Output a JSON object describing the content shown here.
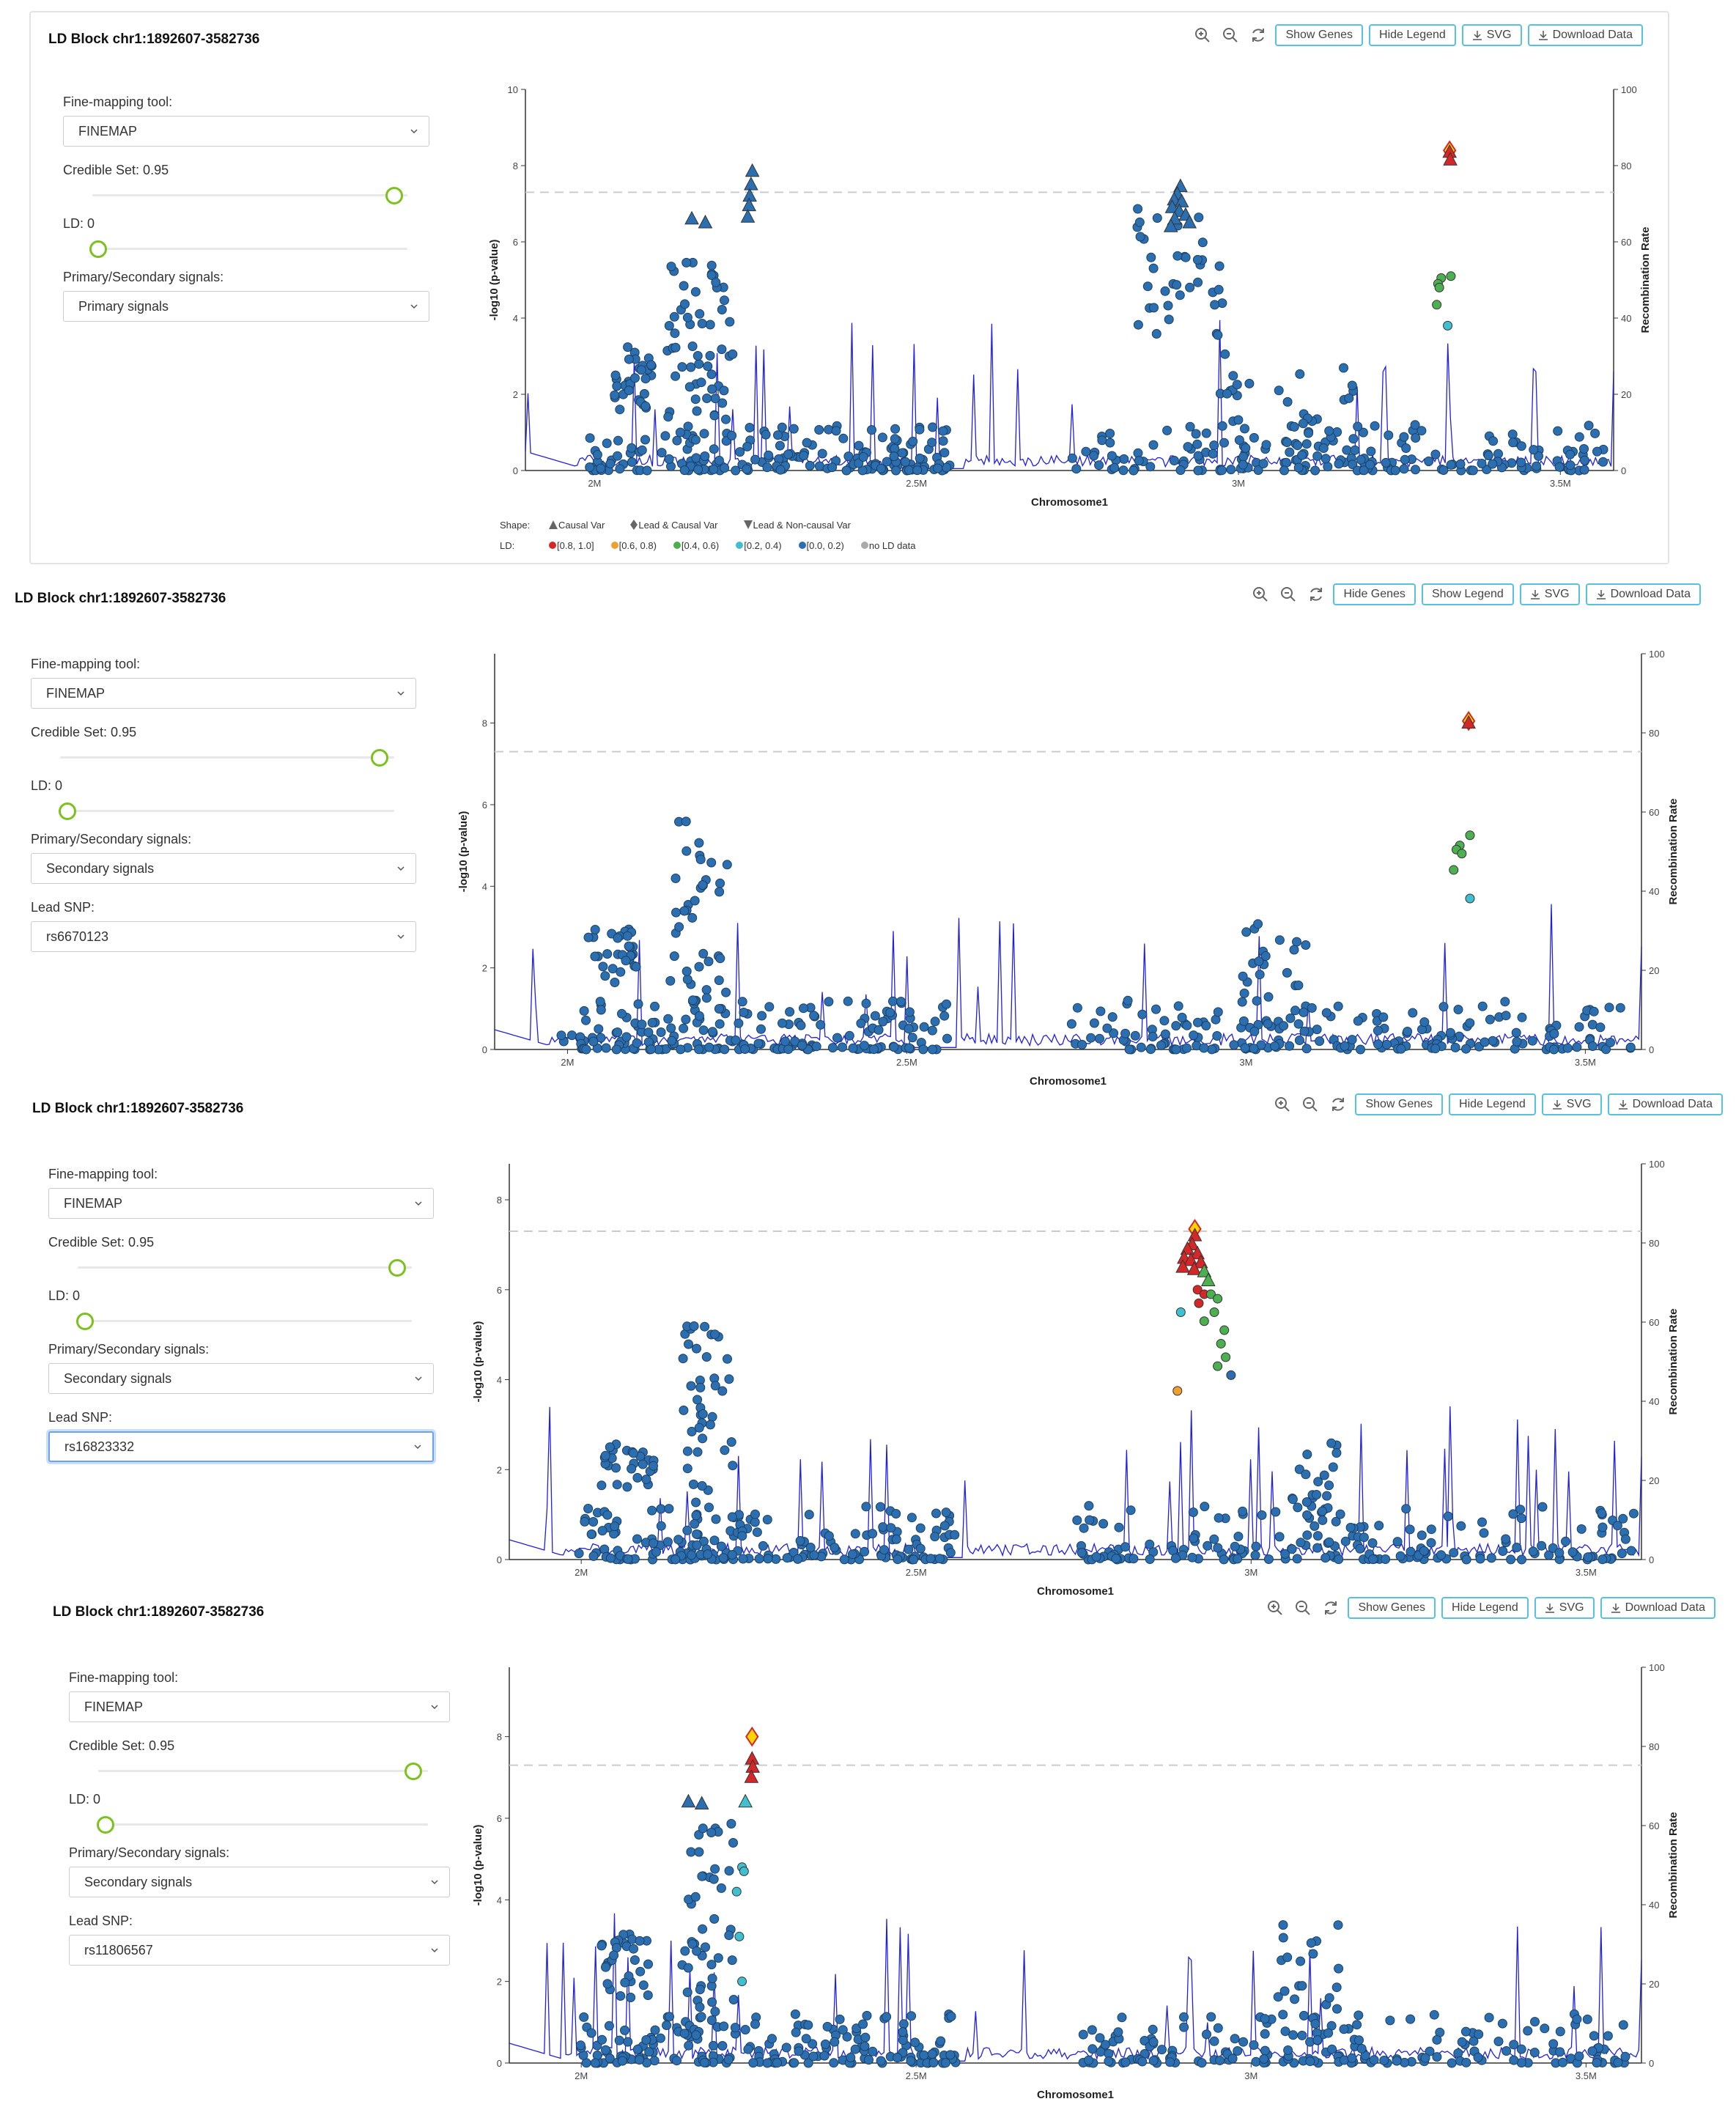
{
  "toolbar_labels": {
    "show_genes": "Show Genes",
    "hide_genes": "Hide Genes",
    "hide_legend": "Hide Legend",
    "show_legend": "Show Legend",
    "svg": "SVG",
    "download": "Download Data",
    "icons": [
      "zoom-in-icon",
      "zoom-out-icon",
      "refresh-icon",
      "download-icon"
    ]
  },
  "controls_labels": {
    "tool_label": "Fine-mapping tool:",
    "credible_label": "Credible Set: 0.95",
    "ld_label": "LD: 0",
    "signal_label": "Primary/Secondary signals:",
    "lead_label": "Lead SNP:"
  },
  "legend": {
    "shape_label": "Shape:",
    "shapes": [
      "Causal Var",
      "Lead & Causal Var",
      "Lead & Non-causal Var"
    ],
    "ld_label": "LD:",
    "ld_bins": [
      {
        "label": "[0.8, 1.0]",
        "color": "#d62728"
      },
      {
        "label": "[0.6, 0.8)",
        "color": "#f0a030"
      },
      {
        "label": "[0.4, 0.6)",
        "color": "#4caf50"
      },
      {
        "label": "[0.2, 0.4)",
        "color": "#3fbfd0"
      },
      {
        "label": "[0.0, 0.2)",
        "color": "#2b6fb0"
      },
      {
        "label": "no LD data",
        "color": "#aaaaaa"
      }
    ]
  },
  "colors": {
    "accent": "#54c2e0",
    "slider": "#7cc21e",
    "recombination": "#2020e0",
    "snp_default": "#2b6fb0",
    "lead": "#ffd400"
  },
  "panels": [
    {
      "title": "LD Block chr1:1892607-3582736",
      "genes_button": "Show Genes",
      "legend_button": "Hide Legend",
      "tool_value": "FINEMAP",
      "signal_value": "Primary signals",
      "lead_value": null,
      "credible_level": 0.95,
      "ld_level": 0
    },
    {
      "title": "LD Block chr1:1892607-3582736",
      "genes_button": "Hide Genes",
      "legend_button": "Show Legend",
      "tool_value": "FINEMAP",
      "signal_value": "Secondary signals",
      "lead_value": "rs6670123",
      "credible_level": 0.95,
      "ld_level": 0
    },
    {
      "title": "LD Block chr1:1892607-3582736",
      "genes_button": "Show Genes",
      "legend_button": "Hide Legend",
      "tool_value": "FINEMAP",
      "signal_value": "Secondary signals",
      "lead_value": "rs16823332",
      "credible_level": 0.95,
      "ld_level": 0
    },
    {
      "title": "LD Block chr1:1892607-3582736",
      "genes_button": "Show Genes",
      "legend_button": "Hide Legend",
      "tool_value": "FINEMAP",
      "signal_value": "Secondary signals",
      "lead_value": "rs11806567",
      "credible_level": 0.95,
      "ld_level": 0
    }
  ],
  "chart_data": [
    {
      "type": "scatter",
      "xlabel": "Chromosome1",
      "ylabel": "-log10 (p-value)",
      "y2label": "Recombination Rate",
      "xlim": [
        1892607,
        3582736
      ],
      "ylim": [
        0,
        10
      ],
      "y2lim": [
        0,
        100
      ],
      "xticks": [
        {
          "v": 2000000,
          "label": "2M"
        },
        {
          "v": 2500000,
          "label": "2.5M"
        },
        {
          "v": 3000000,
          "label": "3M"
        },
        {
          "v": 3500000,
          "label": "3.5M"
        }
      ],
      "yticks": [
        0,
        2,
        4,
        6,
        8,
        10
      ],
      "y2ticks": [
        0,
        20,
        40,
        60,
        80,
        100
      ],
      "threshold": 7.3,
      "highlights": [
        {
          "x": 2245000,
          "y": 7.85,
          "shape": "tri",
          "color": "#2b6fb0"
        },
        {
          "x": 2243000,
          "y": 7.5,
          "shape": "tri",
          "color": "#2b6fb0"
        },
        {
          "x": 2241000,
          "y": 7.2,
          "shape": "tri",
          "color": "#2b6fb0"
        },
        {
          "x": 2240000,
          "y": 6.95,
          "shape": "tri",
          "color": "#2b6fb0"
        },
        {
          "x": 2238000,
          "y": 6.65,
          "shape": "tri",
          "color": "#2b6fb0"
        },
        {
          "x": 2151000,
          "y": 6.6,
          "shape": "tri",
          "color": "#2b6fb0"
        },
        {
          "x": 2172000,
          "y": 6.5,
          "shape": "tri",
          "color": "#2b6fb0"
        },
        {
          "x": 2910000,
          "y": 7.45,
          "shape": "tri",
          "color": "#2b6fb0"
        },
        {
          "x": 2905000,
          "y": 7.25,
          "shape": "tri",
          "color": "#2b6fb0"
        },
        {
          "x": 2900000,
          "y": 7.1,
          "shape": "tri",
          "color": "#2b6fb0"
        },
        {
          "x": 2912000,
          "y": 7.05,
          "shape": "tri",
          "color": "#2b6fb0"
        },
        {
          "x": 2897000,
          "y": 6.9,
          "shape": "tri",
          "color": "#2b6fb0"
        },
        {
          "x": 2908000,
          "y": 6.8,
          "shape": "tri",
          "color": "#2b6fb0"
        },
        {
          "x": 2918000,
          "y": 6.7,
          "shape": "tri",
          "color": "#2b6fb0"
        },
        {
          "x": 2901000,
          "y": 6.6,
          "shape": "tri",
          "color": "#2b6fb0"
        },
        {
          "x": 2924000,
          "y": 6.5,
          "shape": "tri",
          "color": "#2b6fb0"
        },
        {
          "x": 2895000,
          "y": 6.4,
          "shape": "tri",
          "color": "#2b6fb0"
        },
        {
          "x": 3328000,
          "y": 8.4,
          "shape": "diamond",
          "color": "#ffd400"
        },
        {
          "x": 3328000,
          "y": 8.35,
          "shape": "tri",
          "color": "#d62728"
        },
        {
          "x": 3329000,
          "y": 8.15,
          "shape": "tri",
          "color": "#d62728"
        },
        {
          "x": 3315000,
          "y": 5.05,
          "shape": "circle",
          "color": "#4caf50"
        },
        {
          "x": 3330000,
          "y": 5.1,
          "shape": "circle",
          "color": "#4caf50"
        },
        {
          "x": 3310000,
          "y": 4.9,
          "shape": "circle",
          "color": "#4caf50"
        },
        {
          "x": 3312000,
          "y": 4.8,
          "shape": "circle",
          "color": "#4caf50"
        },
        {
          "x": 3308000,
          "y": 4.35,
          "shape": "circle",
          "color": "#4caf50"
        },
        {
          "x": 3325000,
          "y": 3.8,
          "shape": "circle",
          "color": "#3fbfd0"
        }
      ],
      "clusters": [
        {
          "x": [
            2030000,
            2090000
          ],
          "y": [
            1.6,
            3.3
          ],
          "n": 32
        },
        {
          "x": [
            2110000,
            2215000
          ],
          "y": [
            0.6,
            5.8
          ],
          "n": 60
        },
        {
          "x": [
            2840000,
            2980000
          ],
          "y": [
            3.5,
            6.9
          ],
          "n": 38
        },
        {
          "x": [
            2960000,
            3180000
          ],
          "y": [
            0.3,
            3.1
          ],
          "n": 36
        }
      ]
    },
    {
      "type": "scatter",
      "xlabel": "Chromosome1",
      "ylabel": "-log10 (p-value)",
      "y2label": "Recombination Rate",
      "xlim": [
        1892607,
        3582736
      ],
      "ylim": [
        0,
        9.7
      ],
      "y2lim": [
        0,
        100
      ],
      "xticks": [
        {
          "v": 2000000,
          "label": "2M"
        },
        {
          "v": 2500000,
          "label": "2.5M"
        },
        {
          "v": 3000000,
          "label": "3M"
        },
        {
          "v": 3500000,
          "label": "3.5M"
        }
      ],
      "yticks": [
        0,
        2,
        4,
        6,
        8
      ],
      "y2ticks": [
        0,
        20,
        40,
        60,
        80,
        100
      ],
      "threshold": 7.3,
      "highlights": [
        {
          "x": 3328000,
          "y": 8.05,
          "shape": "diamond",
          "color": "#ffd400"
        },
        {
          "x": 3328000,
          "y": 8.0,
          "shape": "tri",
          "color": "#d62728"
        },
        {
          "x": 3330000,
          "y": 5.25,
          "shape": "circle",
          "color": "#4caf50"
        },
        {
          "x": 3315000,
          "y": 5.0,
          "shape": "circle",
          "color": "#4caf50"
        },
        {
          "x": 3310000,
          "y": 4.9,
          "shape": "circle",
          "color": "#4caf50"
        },
        {
          "x": 3318000,
          "y": 4.8,
          "shape": "circle",
          "color": "#4caf50"
        },
        {
          "x": 3306000,
          "y": 4.4,
          "shape": "circle",
          "color": "#4caf50"
        },
        {
          "x": 3330000,
          "y": 3.7,
          "shape": "circle",
          "color": "#3fbfd0"
        }
      ],
      "clusters": [
        {
          "x": [
            2030000,
            2110000
          ],
          "y": [
            1.6,
            3.0
          ],
          "n": 30
        },
        {
          "x": [
            2150000,
            2240000
          ],
          "y": [
            0.5,
            5.6
          ],
          "n": 45
        },
        {
          "x": [
            2990000,
            3100000
          ],
          "y": [
            0.4,
            3.2
          ],
          "n": 30
        }
      ]
    },
    {
      "type": "scatter",
      "xlabel": "Chromosome1",
      "ylabel": "-log10 (p-value)",
      "y2label": "Recombination Rate",
      "xlim": [
        1892607,
        3582736
      ],
      "ylim": [
        0,
        8.8
      ],
      "y2lim": [
        0,
        100
      ],
      "xticks": [
        {
          "v": 2000000,
          "label": "2M"
        },
        {
          "v": 2500000,
          "label": "2.5M"
        },
        {
          "v": 3000000,
          "label": "3M"
        },
        {
          "v": 3500000,
          "label": "3.5M"
        }
      ],
      "yticks": [
        0,
        2,
        4,
        6,
        8
      ],
      "y2ticks": [
        0,
        20,
        40,
        60,
        80,
        100
      ],
      "threshold": 7.3,
      "highlights": [
        {
          "x": 2916000,
          "y": 7.35,
          "shape": "diamond",
          "color": "#ffd400"
        },
        {
          "x": 2916000,
          "y": 7.2,
          "shape": "tri",
          "color": "#d62728"
        },
        {
          "x": 2912000,
          "y": 7.0,
          "shape": "tri",
          "color": "#d62728"
        },
        {
          "x": 2905000,
          "y": 6.9,
          "shape": "tri",
          "color": "#d62728"
        },
        {
          "x": 2920000,
          "y": 6.8,
          "shape": "tri",
          "color": "#d62728"
        },
        {
          "x": 2900000,
          "y": 6.7,
          "shape": "tri",
          "color": "#d62728"
        },
        {
          "x": 2910000,
          "y": 6.65,
          "shape": "tri",
          "color": "#d62728"
        },
        {
          "x": 2925000,
          "y": 6.6,
          "shape": "tri",
          "color": "#d62728"
        },
        {
          "x": 2898000,
          "y": 6.5,
          "shape": "tri",
          "color": "#d62728"
        },
        {
          "x": 2915000,
          "y": 6.45,
          "shape": "tri",
          "color": "#d62728"
        },
        {
          "x": 2930000,
          "y": 6.4,
          "shape": "tri",
          "color": "#4caf50"
        },
        {
          "x": 2936000,
          "y": 6.2,
          "shape": "tri",
          "color": "#4caf50"
        },
        {
          "x": 2920000,
          "y": 6.0,
          "shape": "circle",
          "color": "#d62728"
        },
        {
          "x": 2930000,
          "y": 5.9,
          "shape": "circle",
          "color": "#d62728"
        },
        {
          "x": 2922000,
          "y": 5.7,
          "shape": "circle",
          "color": "#d62728"
        },
        {
          "x": 2940000,
          "y": 5.9,
          "shape": "circle",
          "color": "#4caf50"
        },
        {
          "x": 2950000,
          "y": 5.8,
          "shape": "circle",
          "color": "#4caf50"
        },
        {
          "x": 2945000,
          "y": 5.5,
          "shape": "circle",
          "color": "#4caf50"
        },
        {
          "x": 2930000,
          "y": 5.3,
          "shape": "circle",
          "color": "#4caf50"
        },
        {
          "x": 2960000,
          "y": 5.1,
          "shape": "circle",
          "color": "#4caf50"
        },
        {
          "x": 2955000,
          "y": 4.8,
          "shape": "circle",
          "color": "#4caf50"
        },
        {
          "x": 2962000,
          "y": 4.5,
          "shape": "circle",
          "color": "#4caf50"
        },
        {
          "x": 2950000,
          "y": 4.3,
          "shape": "circle",
          "color": "#4caf50"
        },
        {
          "x": 2970000,
          "y": 4.1,
          "shape": "circle",
          "color": "#2b6fb0"
        },
        {
          "x": 2890000,
          "y": 3.75,
          "shape": "circle",
          "color": "#f0a030"
        },
        {
          "x": 2895000,
          "y": 5.5,
          "shape": "circle",
          "color": "#3fbfd0"
        }
      ],
      "clusters": [
        {
          "x": [
            2030000,
            2110000
          ],
          "y": [
            1.6,
            2.6
          ],
          "n": 28
        },
        {
          "x": [
            2150000,
            2230000
          ],
          "y": [
            0.5,
            5.4
          ],
          "n": 45
        },
        {
          "x": [
            3060000,
            3150000
          ],
          "y": [
            0.3,
            2.6
          ],
          "n": 28
        }
      ]
    },
    {
      "type": "scatter",
      "xlabel": "Chromosome1",
      "ylabel": "-log10 (p-value)",
      "y2label": "Recombination Rate",
      "xlim": [
        1892607,
        3582736
      ],
      "ylim": [
        0,
        9.7
      ],
      "y2lim": [
        0,
        100
      ],
      "xticks": [
        {
          "v": 2000000,
          "label": "2M"
        },
        {
          "v": 2500000,
          "label": "2.5M"
        },
        {
          "v": 3000000,
          "label": "3M"
        },
        {
          "v": 3500000,
          "label": "3.5M"
        }
      ],
      "yticks": [
        0,
        2,
        4,
        6,
        8
      ],
      "y2ticks": [
        0,
        20,
        40,
        60,
        80,
        100
      ],
      "threshold": 7.3,
      "highlights": [
        {
          "x": 2255000,
          "y": 8.0,
          "shape": "diamond",
          "color": "#ffd400"
        },
        {
          "x": 2255000,
          "y": 7.45,
          "shape": "tri",
          "color": "#d62728"
        },
        {
          "x": 2256000,
          "y": 7.25,
          "shape": "tri",
          "color": "#d62728"
        },
        {
          "x": 2254000,
          "y": 7.0,
          "shape": "tri",
          "color": "#d62728"
        },
        {
          "x": 2245000,
          "y": 6.4,
          "shape": "tri",
          "color": "#3fbfd0"
        },
        {
          "x": 2160000,
          "y": 6.4,
          "shape": "tri",
          "color": "#2b6fb0"
        },
        {
          "x": 2180000,
          "y": 6.35,
          "shape": "tri",
          "color": "#2b6fb0"
        },
        {
          "x": 2240000,
          "y": 4.8,
          "shape": "circle",
          "color": "#3fbfd0"
        },
        {
          "x": 2243000,
          "y": 4.7,
          "shape": "circle",
          "color": "#3fbfd0"
        },
        {
          "x": 2232000,
          "y": 4.2,
          "shape": "circle",
          "color": "#3fbfd0"
        },
        {
          "x": 2236000,
          "y": 3.1,
          "shape": "circle",
          "color": "#3fbfd0"
        },
        {
          "x": 2240000,
          "y": 2.0,
          "shape": "circle",
          "color": "#3fbfd0"
        }
      ],
      "clusters": [
        {
          "x": [
            2030000,
            2100000
          ],
          "y": [
            1.6,
            3.3
          ],
          "n": 30
        },
        {
          "x": [
            2150000,
            2230000
          ],
          "y": [
            0.6,
            6.0
          ],
          "n": 50
        },
        {
          "x": [
            3040000,
            3150000
          ],
          "y": [
            0.3,
            3.4
          ],
          "n": 30
        }
      ]
    }
  ]
}
